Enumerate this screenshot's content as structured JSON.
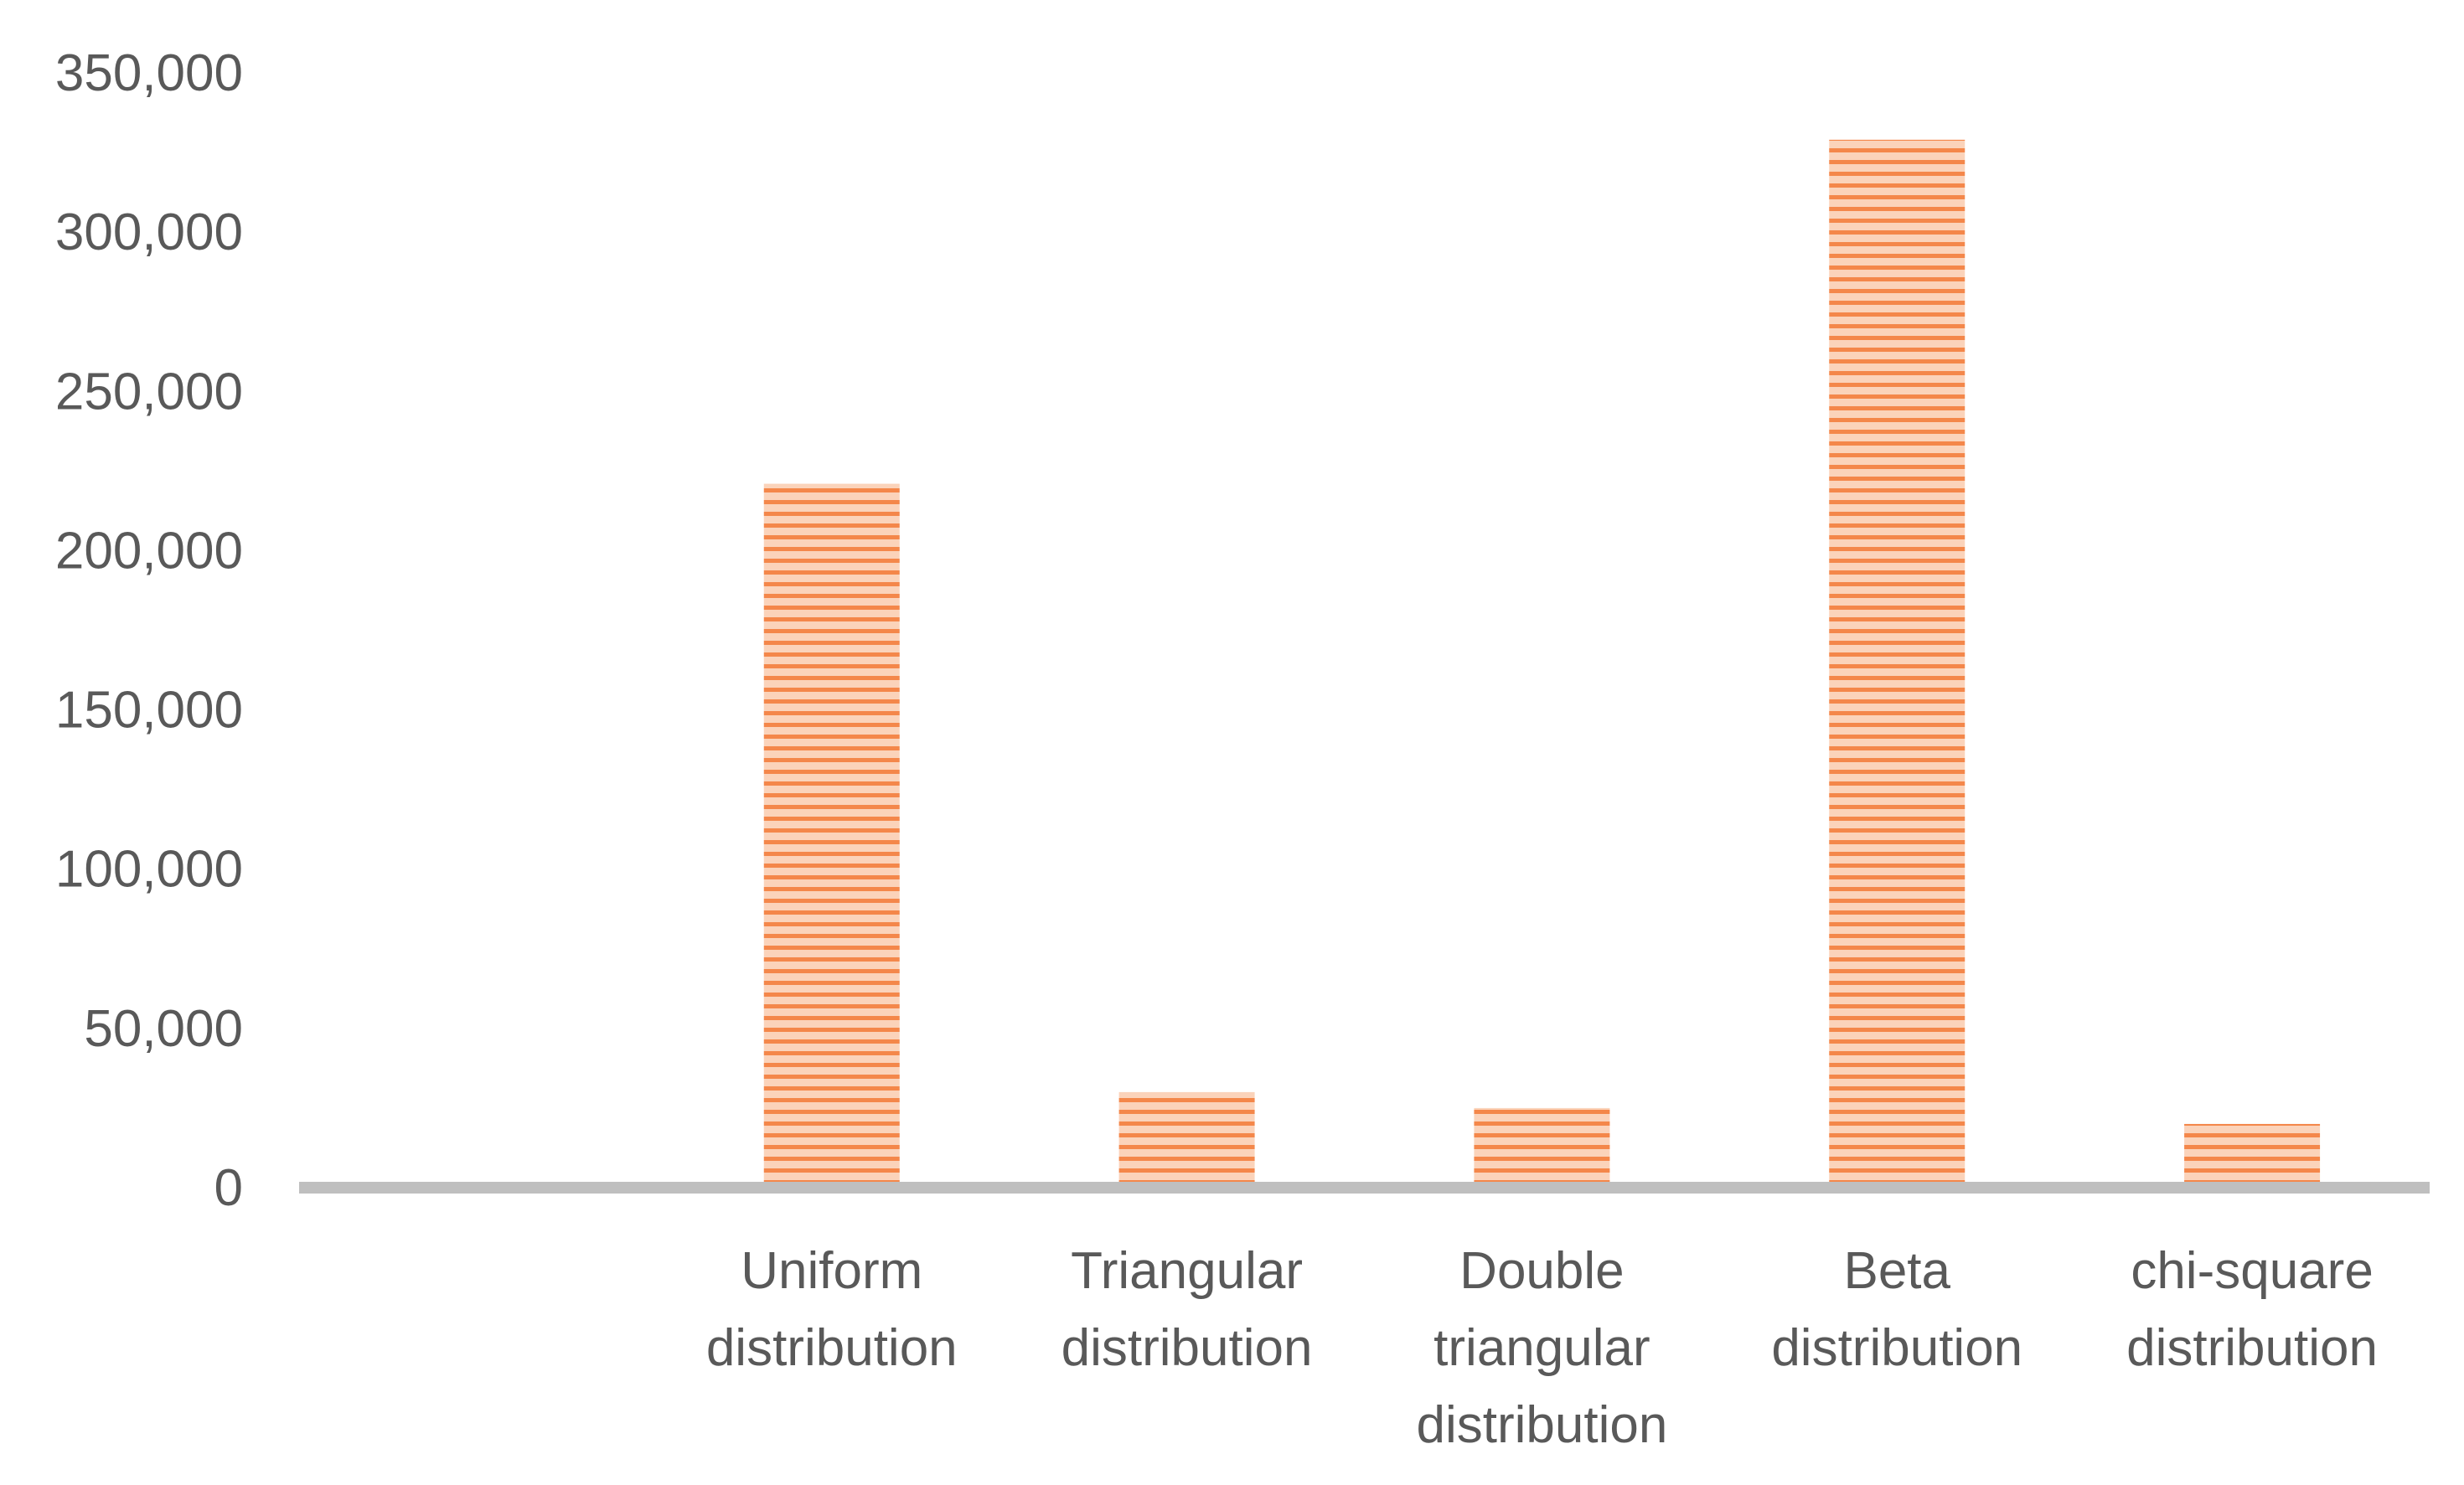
{
  "chart_data": {
    "type": "bar",
    "categories": [
      "",
      "Uniform distribution",
      "Triangular distribution",
      "Double triangular distribution",
      "Beta distribution",
      "chi-square distribution"
    ],
    "category_lines": [
      [],
      [
        "Uniform",
        "distribution"
      ],
      [
        "Triangular",
        "distribution"
      ],
      [
        "Double",
        "triangular",
        "distribution"
      ],
      [
        "Beta",
        "distribution"
      ],
      [
        "chi-square",
        "distribution"
      ]
    ],
    "values": [
      0,
      221000,
      30000,
      25000,
      329000,
      20000
    ],
    "ylim": [
      0,
      350000
    ],
    "yticks": [
      0,
      50000,
      100000,
      150000,
      200000,
      250000,
      300000,
      350000
    ],
    "ytick_labels": [
      "0",
      "50,000",
      "100,000",
      "150,000",
      "200,000",
      "250,000",
      "300,000",
      "350,000"
    ],
    "title": "",
    "xlabel": "",
    "ylabel": "",
    "grid": false,
    "legend": "none",
    "bar_color": "#F4874A",
    "bar_stripe_color": "#FBD3BA",
    "axis_color": "#BFBFBF",
    "text_color": "#595959"
  }
}
